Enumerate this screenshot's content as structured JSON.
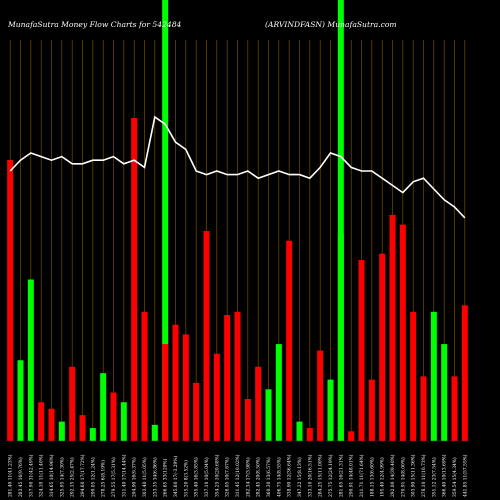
{
  "chart_data": {
    "type": "bar",
    "title_left": "MunafaSutra  Money Flow  Charts for 542484",
    "title_right": "(ARVINDFASN) MunafaSutra.com",
    "ylim": [
      0,
      100
    ],
    "price_ylim": [
      0,
      100
    ],
    "grid": "vertical",
    "colors": {
      "up": "#00ff00",
      "down": "#ff0000",
      "line": "#ffffff",
      "grid": "#8a5a00",
      "highlight": "#00ff00",
      "background": "#000000"
    },
    "categories": [
      "281.40 11(41.23%)",
      "283.45 16(9.76%)",
      "317.90 31(42.49%)",
      "324.10 11(11.40%)",
      "314.65 10(14.96%)",
      "325.95 14(7.30%)",
      "292.15 25(2.47%)",
      "294.60 17(17.72%)",
      "299.05 12(1.24%)",
      "278.25 6(8.19%)",
      "279.55 17(5.31%)",
      "311.40 17(14.44%)",
      "294.90 16(9.37%)",
      "303.40 11(5.05%)",
      "233.35 34(6.86%)",
      "266.65 33(120%)",
      "345.60 17(-3.29%)",
      "315.20 8(3.52%)",
      "355.40 16(3.85%)",
      "337.10 10(5.04%)",
      "354.25 10(20.68%)",
      "326.05 10(7.67%)",
      "311.45 12(10.02%)",
      "282.34 17(3.98%)",
      "282.45 20(8.50%)",
      "360.30 13(6.57%)",
      "406.75 14(8.55%)",
      "338.90 12(36.64%)",
      "347.22 15(8.13%)",
      "333.10 20(16.51%)",
      "284.25 15(11.00%)",
      "275.75 12(24.19%)",
      "281.65 16(21.31%)",
      "290.91 14(48.01%)",
      "211.71 11(71.64%)",
      "188.15 13(6.60%)",
      "195.40 12(4.99%)",
      "292.00 14(39.40%)",
      "270.91 14(8.00%)",
      "303.90 15(11.36%)",
      "278.10 11(10.73%)",
      "351.12 23(7.54%)",
      "366.40 10(13.69%)",
      "359.54 15(4.34%)",
      "441.85 11(57.55%)"
    ],
    "bar_colors": [
      "red",
      "green",
      "green",
      "red",
      "red",
      "green",
      "red",
      "red",
      "green",
      "green",
      "red",
      "green",
      "red",
      "red",
      "green",
      "red",
      "red",
      "red",
      "red",
      "red",
      "red",
      "red",
      "red",
      "red",
      "red",
      "green",
      "green",
      "red",
      "green",
      "red",
      "red",
      "green",
      "green",
      "red",
      "red",
      "red",
      "red",
      "red",
      "red",
      "red",
      "red",
      "green",
      "green",
      "red",
      "red"
    ],
    "values": [
      87,
      25,
      50,
      12,
      10,
      6,
      23,
      8,
      4,
      21,
      15,
      12,
      100,
      40,
      5,
      30,
      36,
      33,
      18,
      65,
      27,
      39,
      40,
      13,
      23,
      16,
      30,
      62,
      6,
      4,
      28,
      19,
      64,
      3,
      56,
      19,
      58,
      70,
      67,
      40,
      20,
      40,
      30,
      20,
      42
    ],
    "price_line": [
      75,
      78,
      80,
      79,
      78,
      79,
      77,
      77,
      78,
      78,
      79,
      77,
      78,
      76,
      90,
      88,
      83,
      81,
      75,
      74,
      75,
      74,
      74,
      75,
      73,
      74,
      75,
      74,
      74,
      73,
      76,
      80,
      79,
      76,
      75,
      75,
      73,
      71,
      69,
      72,
      73,
      70,
      67,
      65,
      62
    ],
    "highlight_columns": [
      15,
      32
    ]
  }
}
